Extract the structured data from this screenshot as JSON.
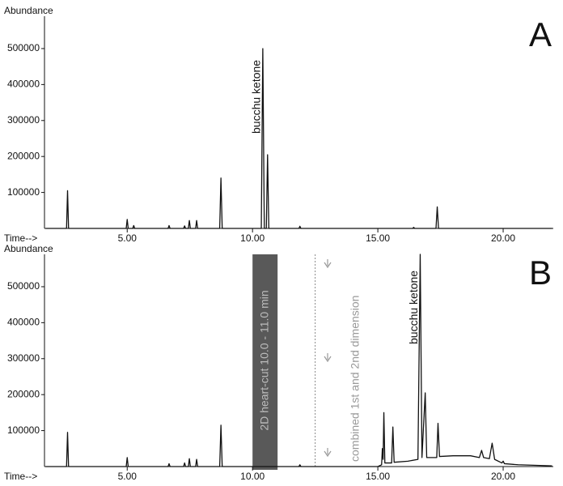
{
  "chart_data": [
    {
      "type": "line",
      "panel_label": "A",
      "y_label": "Abundance",
      "x_label": "Time-->",
      "xlim": [
        1.7,
        22.0
      ],
      "ylim": [
        0,
        590000
      ],
      "xticks": [
        {
          "value": 5,
          "label": "5.00"
        },
        {
          "value": 10,
          "label": "10.00"
        },
        {
          "value": 15,
          "label": "15.00"
        },
        {
          "value": 20,
          "label": "20.00"
        }
      ],
      "yticks": [
        100000,
        200000,
        300000,
        400000,
        500000
      ],
      "annotations": [
        {
          "text": "bucchu ketone"
        }
      ],
      "series": [
        {
          "color": "#111111",
          "x": [
            1.75,
            2.58,
            2.62,
            2.66,
            4.96,
            5.0,
            5.04,
            5.22,
            5.26,
            5.3,
            6.63,
            6.67,
            6.71,
            7.25,
            7.29,
            7.33,
            7.44,
            7.48,
            7.52,
            7.73,
            7.77,
            7.81,
            8.69,
            8.74,
            8.79,
            10.35,
            10.41,
            10.47,
            10.55,
            10.6,
            10.65,
            11.85,
            11.89,
            11.93,
            16.39,
            16.43,
            16.47,
            17.32,
            17.37,
            17.42,
            21.95
          ],
          "values": [
            0,
            0,
            105000,
            0,
            0,
            25000,
            0,
            0,
            8000,
            0,
            0,
            8000,
            0,
            0,
            7000,
            0,
            0,
            22000,
            0,
            0,
            22000,
            0,
            0,
            140000,
            0,
            0,
            500000,
            0,
            0,
            205000,
            0,
            0,
            6000,
            0,
            0,
            3000,
            0,
            0,
            60000,
            0,
            0
          ]
        }
      ]
    },
    {
      "type": "line",
      "panel_label": "B",
      "y_label": "Abundance",
      "x_label": "Time-->",
      "xlim": [
        1.7,
        22.0
      ],
      "ylim": [
        0,
        590000
      ],
      "xticks": [
        {
          "value": 5,
          "label": "5.00"
        },
        {
          "value": 10,
          "label": "10.00"
        },
        {
          "value": 15,
          "label": "15.00"
        },
        {
          "value": 20,
          "label": "20.00"
        }
      ],
      "yticks": [
        100000,
        200000,
        300000,
        400000,
        500000
      ],
      "annotations": [
        {
          "text": "bucchu ketone"
        },
        {
          "text": "combined 1st and 2nd dimension"
        }
      ],
      "heart_cut": {
        "text": "2D heart-cut 10.0 - 11.0 min",
        "x": [
          10.0,
          11.0
        ]
      },
      "divider_x": 12.5,
      "series": [
        {
          "color": "#111111",
          "x": [
            1.75,
            2.58,
            2.62,
            2.66,
            4.96,
            5.0,
            5.04,
            6.63,
            6.67,
            6.71,
            7.25,
            7.29,
            7.33,
            7.44,
            7.48,
            7.52,
            7.73,
            7.77,
            7.81,
            8.69,
            8.74,
            8.79,
            11.85,
            11.89,
            11.93,
            15.0,
            15.15,
            15.18,
            15.21,
            15.24,
            15.28,
            15.55,
            15.6,
            15.65,
            16.2,
            16.6,
            16.69,
            16.76,
            16.89,
            16.95,
            17.35,
            17.4,
            17.46,
            18.0,
            18.7,
            19.05,
            19.14,
            19.22,
            19.45,
            19.56,
            19.66,
            19.95,
            20.0,
            20.05,
            20.6,
            21.95
          ],
          "values": [
            0,
            0,
            95000,
            0,
            0,
            25000,
            0,
            0,
            8000,
            0,
            0,
            10000,
            0,
            0,
            22000,
            0,
            0,
            20000,
            0,
            0,
            115000,
            0,
            0,
            5000,
            0,
            0,
            5000,
            50000,
            20000,
            150000,
            10000,
            10000,
            110000,
            12000,
            15000,
            20000,
            590000,
            25000,
            205000,
            25000,
            25000,
            120000,
            28000,
            30000,
            30000,
            25000,
            45000,
            25000,
            22000,
            65000,
            20000,
            10000,
            15000,
            8000,
            5000,
            2000
          ]
        }
      ]
    }
  ]
}
